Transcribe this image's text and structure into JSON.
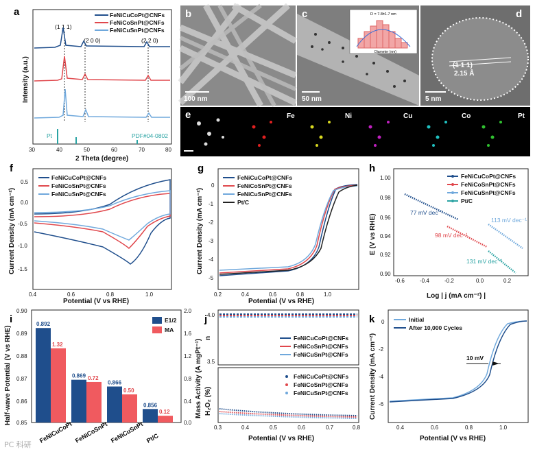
{
  "panels": {
    "a": {
      "label": "a",
      "xlabel": "2 Theta (degree)",
      "ylabel": "Intensity (a.u.)",
      "legend": [
        "FeNiCuCoPt@CNFs",
        "FeNiCoSnPt@CNFs",
        "FeNiCuSnPt@CNFs"
      ],
      "peaks": [
        "(1 1 1)",
        "(2 0 0)",
        "(2 2 0)"
      ],
      "ref_left": "Pt",
      "ref_right": "PDF#04-0802",
      "xticks": [
        "30",
        "40",
        "50",
        "60",
        "70",
        "80"
      ]
    },
    "b": {
      "label": "b",
      "scale": "100 nm"
    },
    "c": {
      "label": "c",
      "scale": "50 nm",
      "inset_title": "D = 7.8±1.7 nm",
      "inset_x": "Diameter (nm)",
      "inset_y": "Counts",
      "inset_ticks": [
        "4",
        "5",
        "6",
        "7",
        "8",
        "9",
        "10",
        "11",
        "12"
      ]
    },
    "d": {
      "label": "d",
      "scale": "5 nm",
      "plane": "(1 1 1)",
      "spacing": "2.15 Å"
    },
    "e": {
      "label": "e",
      "elements": [
        "Fe",
        "Ni",
        "Cu",
        "Co",
        "Pt"
      ]
    },
    "f": {
      "label": "f",
      "xlabel": "Potential (V vs RHE)",
      "ylabel": "Current Density (mA cm⁻²)",
      "legend": [
        "FeNiCuCoPt@CNFs",
        "FeNiCoSnPt@CNFs",
        "FeNiCuSnPt@CNFs"
      ],
      "xticks": [
        "0.4",
        "0.6",
        "0.8",
        "1.0"
      ],
      "yticks": [
        "0.5",
        "0.0",
        "-0.5",
        "-1.0",
        "-1.5"
      ]
    },
    "g": {
      "label": "g",
      "xlabel": "Potential (V vs RHE)",
      "ylabel": "Current Density (mA cm⁻²)",
      "legend": [
        "FeNiCuCoPt@CNFs",
        "FeNiCoSnPt@CNFs",
        "FeNiCuSnPt@CNFs",
        "Pt/C"
      ],
      "xticks": [
        "0.2",
        "0.4",
        "0.6",
        "0.8",
        "1.0"
      ],
      "yticks": [
        "0",
        "-1",
        "-2",
        "-3",
        "-4",
        "-5"
      ]
    },
    "h": {
      "label": "h",
      "xlabel": "Log | j (mA cm⁻²) |",
      "ylabel": "E (V vs RHE)",
      "legend": [
        "FeNiCuCoPt@CNFs",
        "FeNiCoSnPt@CNFs",
        "FeNiCuSnPt@CNFs",
        "Pt/C"
      ],
      "slopes": [
        "77 mV dec⁻¹",
        "98 mV dec⁻¹",
        "113 mV dec⁻¹",
        "131 mV dec⁻¹"
      ],
      "xticks": [
        "-0.6",
        "-0.4",
        "-0.2",
        "0.0",
        "0.2"
      ],
      "yticks": [
        "1.00",
        "0.98",
        "0.96",
        "0.94",
        "0.92",
        "0.90"
      ]
    },
    "i": {
      "label": "i",
      "ylabel_left": "Half-wave Potential (V vs RHE)",
      "ylabel_right": "Mass Activity (A mgPt⁻¹)",
      "legend": [
        "E1/2",
        "MA"
      ],
      "yticks_left": [
        "0.90",
        "0.89",
        "0.88",
        "0.87",
        "0.86",
        "0.85"
      ],
      "yticks_right": [
        "2.0",
        "1.6",
        "1.2",
        "0.8",
        "0.4",
        "0.0"
      ]
    },
    "j": {
      "label": "j",
      "xlabel": "Potential (V vs RHE)",
      "ylabel_top": "n",
      "ylabel_bottom": "H₂O₂ (%)",
      "legend": [
        "FeNiCuCoPt@CNFs",
        "FeNiCoSnPt@CNFs",
        "FeNiCuSnPt@CNFs"
      ],
      "xticks": [
        "0.3",
        "0.4",
        "0.5",
        "0.6",
        "0.7",
        "0.8"
      ],
      "yticks_top": [
        "4.0",
        "3.5"
      ],
      "yticks_bottom": [
        "5",
        "4",
        "3",
        "2",
        "1",
        "0"
      ]
    },
    "k": {
      "label": "k",
      "xlabel": "Potential (V vs RHE)",
      "ylabel": "Current Density (mA cm⁻²)",
      "legend": [
        "Initial",
        "After 10,000 Cycles"
      ],
      "annotation": "10 mV",
      "xticks": [
        "0.4",
        "0.6",
        "0.8",
        "1.0"
      ],
      "yticks": [
        "0",
        "-2",
        "-4",
        "-6"
      ]
    }
  },
  "colors": {
    "blue": "#1f4e8c",
    "red": "#e0474c",
    "light": "#6fa8dc",
    "teal": "#2aa3a3"
  },
  "chart_data": [
    {
      "type": "bar",
      "panel": "i",
      "categories": [
        "FeNiCuCoPt",
        "FeNiCoSnPt",
        "FeNiCuSnPt",
        "Pt/C"
      ],
      "series": [
        {
          "name": "E1/2",
          "values": [
            0.892,
            0.869,
            0.866,
            0.856
          ]
        },
        {
          "name": "MA",
          "values": [
            1.32,
            0.72,
            0.5,
            0.12
          ]
        }
      ],
      "ylim_left": [
        0.85,
        0.9
      ],
      "ylim_right": [
        0,
        2.0
      ]
    },
    {
      "type": "line",
      "panel": "j",
      "series": [
        {
          "name": "FeNiCuCoPt@CNFs",
          "n": 4.0
        },
        {
          "name": "FeNiCoSnPt@CNFs",
          "n": 4.0
        },
        {
          "name": "FeNiCuSnPt@CNFs",
          "n": 4.0
        }
      ],
      "x": [
        0.3,
        0.8
      ]
    }
  ],
  "watermark": "PC 科研"
}
